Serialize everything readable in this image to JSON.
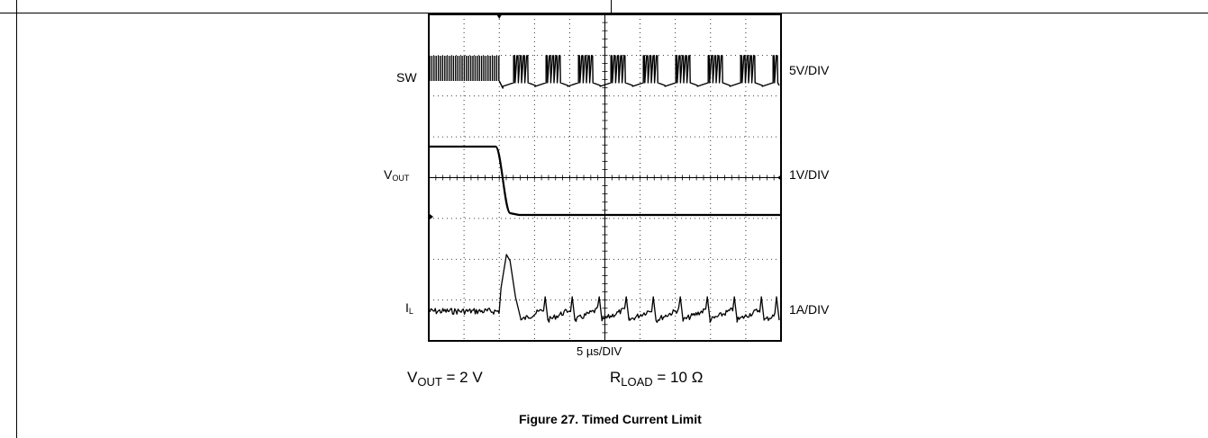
{
  "chart_data": {
    "type": "line",
    "title": "",
    "channels": [
      {
        "name": "SW",
        "scale": "5V/DIV"
      },
      {
        "name": "V",
        "name_sub": "OUT",
        "scale": "1V/DIV"
      },
      {
        "name": "I",
        "name_sub": "L",
        "scale": "1A/DIV"
      }
    ],
    "timebase": "5 µs/DIV",
    "grid": {
      "divisions_x": 10,
      "divisions_y": 8,
      "on": true
    },
    "conditions": [
      {
        "label": "V",
        "sub": "OUT",
        "text": " = 2 V"
      },
      {
        "label": "R",
        "sub": "LOAD",
        "text": " = 10 Ω"
      }
    ],
    "caption": "Figure 27. Timed Current Limit",
    "annotations": [
      "Short circuit applied at ~2 divisions; V_OUT drops, I_L peaks then timed current limit pulses"
    ]
  }
}
